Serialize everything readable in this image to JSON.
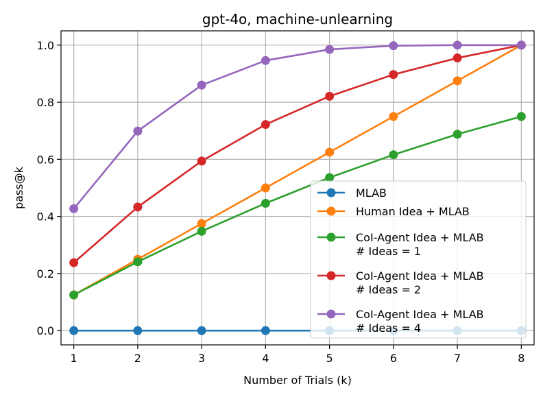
{
  "chart_data": {
    "type": "line",
    "title": "gpt-4o, machine-unlearning",
    "xlabel": "Number of Trials (k)",
    "ylabel": "pass@k",
    "x": [
      1,
      2,
      3,
      4,
      5,
      6,
      7,
      8
    ],
    "xticks": [
      "1",
      "2",
      "3",
      "4",
      "5",
      "6",
      "7",
      "8"
    ],
    "yticks": [
      "0.0",
      "0.2",
      "0.4",
      "0.6",
      "0.8",
      "1.0"
    ],
    "ytick_values": [
      0.0,
      0.2,
      0.4,
      0.6,
      0.8,
      1.0
    ],
    "xlim": [
      0.8,
      8.2
    ],
    "ylim": [
      -0.05,
      1.05
    ],
    "grid": true,
    "legend_position": "lower-right",
    "series": [
      {
        "name": "MLAB",
        "color": "#1f77b4",
        "values": [
          0,
          0,
          0,
          0,
          0,
          0,
          0,
          0
        ]
      },
      {
        "name": "Human Idea + MLAB",
        "color": "#ff7f0e",
        "values": [
          0.125,
          0.25,
          0.375,
          0.5,
          0.625,
          0.75,
          0.875,
          1.0
        ]
      },
      {
        "name": "CoI-Agent Idea + MLAB\n# Ideas = 1",
        "color": "#2ca02c",
        "values": [
          0.125,
          0.241,
          0.348,
          0.446,
          0.536,
          0.616,
          0.688,
          0.75
        ]
      },
      {
        "name": "CoI-Agent Idea + MLAB\n# Ideas = 2",
        "color": "#d62728",
        "values": [
          0.238,
          0.433,
          0.594,
          0.722,
          0.821,
          0.897,
          0.955,
          1.0
        ]
      },
      {
        "name": "CoI-Agent Idea + MLAB\n# Ideas = 4",
        "color": "#9467bd",
        "values": [
          0.427,
          0.699,
          0.86,
          0.946,
          0.985,
          0.998,
          1.0,
          1.0
        ]
      }
    ]
  }
}
